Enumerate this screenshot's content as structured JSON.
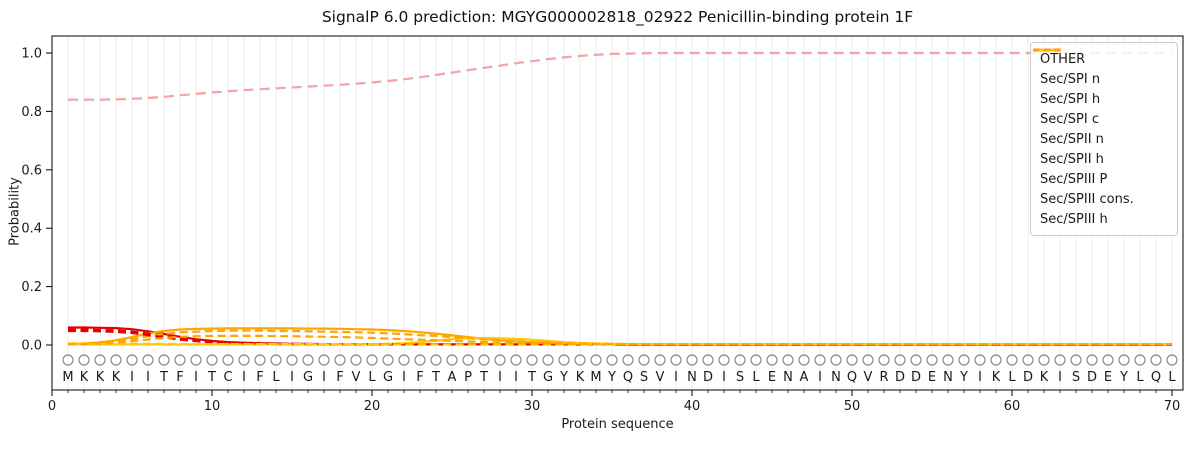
{
  "chart_data": {
    "type": "line",
    "title": "SignalP 6.0 prediction: MGYG000002818_02922 Penicillin-binding protein 1F",
    "xlabel": "Protein sequence",
    "ylabel": "Probability",
    "xlim": [
      0,
      70.7
    ],
    "ylim": [
      -0.155,
      1.06
    ],
    "x_ticks": [
      0,
      10,
      20,
      30,
      40,
      50,
      60,
      70
    ],
    "y_ticks": [
      0.0,
      0.2,
      0.4,
      0.6,
      0.8,
      1.0
    ],
    "grid": "light vertical gridline at every residue position 1-70",
    "legend_position": "upper right",
    "x": {
      "from": 1,
      "to": 70,
      "step": 1
    },
    "sequence": "MKKKIITFITCIFLIGIFVLGIFTAPTIITGYKMYQSVINDISLENAINQVRDDENYIKLDKISDEYLQL",
    "residue_marker": "open gray circle above each sequence letter",
    "series": [
      {
        "name": "OTHER",
        "color": "#f5a3a3",
        "dash": "dashed",
        "values": [
          0.84,
          0.84,
          0.84,
          0.841,
          0.843,
          0.846,
          0.85,
          0.855,
          0.86,
          0.865,
          0.869,
          0.873,
          0.876,
          0.879,
          0.882,
          0.885,
          0.888,
          0.891,
          0.895,
          0.899,
          0.904,
          0.91,
          0.917,
          0.925,
          0.933,
          0.941,
          0.949,
          0.957,
          0.965,
          0.972,
          0.979,
          0.985,
          0.99,
          0.994,
          0.997,
          0.998,
          0.999,
          1.0,
          1.0,
          1.0,
          1.0,
          1.0,
          1.0,
          1.0,
          1.0,
          1.0,
          1.0,
          1.0,
          1.0,
          1.0,
          1.0,
          1.0,
          1.0,
          1.0,
          1.0,
          1.0,
          1.0,
          1.0,
          1.0,
          1.0,
          1.0,
          1.0,
          1.0,
          1.0,
          1.0,
          1.0,
          1.0,
          1.0,
          1.0,
          1.0
        ]
      },
      {
        "name": "Sec/SPI n",
        "color": "#e60000",
        "dash": "solid",
        "values": [
          0.06,
          0.06,
          0.059,
          0.058,
          0.054,
          0.047,
          0.038,
          0.028,
          0.02,
          0.014,
          0.01,
          0.008,
          0.006,
          0.005,
          0.004,
          0.004,
          0.003,
          0.003,
          0.003,
          0.002,
          0.002,
          0.002,
          0.002,
          0.002,
          0.002,
          0.002,
          0.002,
          0.002,
          0.002,
          0.002,
          0.002,
          0.002,
          0.002,
          0.002,
          0.002,
          0.001,
          0.001,
          0.001,
          0.001,
          0.001,
          0.001,
          0.001,
          0.001,
          0.001,
          0.001,
          0.001,
          0.001,
          0.001,
          0.001,
          0.001,
          0.001,
          0.001,
          0.001,
          0.001,
          0.001,
          0.001,
          0.001,
          0.001,
          0.001,
          0.001,
          0.001,
          0.001,
          0.001,
          0.001,
          0.001,
          0.001,
          0.001,
          0.001,
          0.001,
          0.001
        ]
      },
      {
        "name": "Sec/SPI h",
        "color": "#ffa500",
        "dash": "solid",
        "values": [
          0.003,
          0.005,
          0.009,
          0.016,
          0.027,
          0.039,
          0.048,
          0.053,
          0.055,
          0.056,
          0.057,
          0.057,
          0.057,
          0.057,
          0.057,
          0.056,
          0.056,
          0.055,
          0.054,
          0.053,
          0.051,
          0.048,
          0.044,
          0.039,
          0.033,
          0.027,
          0.021,
          0.016,
          0.012,
          0.009,
          0.007,
          0.005,
          0.004,
          0.003,
          0.003,
          0.002,
          0.002,
          0.002,
          0.002,
          0.002,
          0.002,
          0.002,
          0.002,
          0.002,
          0.002,
          0.002,
          0.002,
          0.002,
          0.002,
          0.002,
          0.002,
          0.002,
          0.002,
          0.002,
          0.002,
          0.002,
          0.002,
          0.002,
          0.002,
          0.002,
          0.002,
          0.002,
          0.002,
          0.002,
          0.002,
          0.002,
          0.002,
          0.002,
          0.002,
          0.002
        ]
      },
      {
        "name": "Sec/SPI c",
        "color": "#ffc800",
        "dash": "solid",
        "values": [
          0.002,
          0.002,
          0.002,
          0.002,
          0.002,
          0.002,
          0.002,
          0.002,
          0.002,
          0.002,
          0.002,
          0.002,
          0.002,
          0.002,
          0.002,
          0.002,
          0.002,
          0.002,
          0.002,
          0.002,
          0.004,
          0.006,
          0.01,
          0.015,
          0.02,
          0.023,
          0.024,
          0.023,
          0.021,
          0.018,
          0.014,
          0.01,
          0.007,
          0.005,
          0.004,
          0.003,
          0.002,
          0.002,
          0.002,
          0.002,
          0.002,
          0.002,
          0.002,
          0.002,
          0.002,
          0.002,
          0.002,
          0.002,
          0.002,
          0.002,
          0.002,
          0.002,
          0.002,
          0.002,
          0.002,
          0.002,
          0.002,
          0.002,
          0.002,
          0.002,
          0.002,
          0.002,
          0.002,
          0.002,
          0.002,
          0.002,
          0.002,
          0.002,
          0.002,
          0.002
        ]
      },
      {
        "name": "Sec/SPII n",
        "color": "#e60000",
        "dash": "dashed",
        "values": [
          0.053,
          0.053,
          0.052,
          0.05,
          0.046,
          0.039,
          0.03,
          0.022,
          0.015,
          0.011,
          0.008,
          0.006,
          0.005,
          0.004,
          0.004,
          0.003,
          0.003,
          0.003,
          0.002,
          0.002,
          0.002,
          0.002,
          0.002,
          0.002,
          0.002,
          0.002,
          0.002,
          0.002,
          0.002,
          0.002,
          0.002,
          0.002,
          0.002,
          0.002,
          0.002,
          0.001,
          0.001,
          0.001,
          0.001,
          0.001,
          0.001,
          0.001,
          0.001,
          0.001,
          0.001,
          0.001,
          0.001,
          0.001,
          0.001,
          0.001,
          0.001,
          0.001,
          0.001,
          0.001,
          0.001,
          0.001,
          0.001,
          0.001,
          0.001,
          0.001,
          0.001,
          0.001,
          0.001,
          0.001,
          0.001,
          0.001,
          0.001,
          0.001,
          0.001,
          0.001
        ]
      },
      {
        "name": "Sec/SPII h",
        "color": "#ffa500",
        "dash": "dashed",
        "values": [
          0.003,
          0.004,
          0.007,
          0.012,
          0.02,
          0.03,
          0.038,
          0.043,
          0.046,
          0.048,
          0.049,
          0.049,
          0.049,
          0.048,
          0.048,
          0.047,
          0.046,
          0.045,
          0.044,
          0.042,
          0.04,
          0.037,
          0.034,
          0.031,
          0.027,
          0.023,
          0.019,
          0.016,
          0.013,
          0.01,
          0.008,
          0.006,
          0.005,
          0.004,
          0.004,
          0.003,
          0.003,
          0.003,
          0.003,
          0.003,
          0.003,
          0.003,
          0.003,
          0.003,
          0.003,
          0.003,
          0.003,
          0.003,
          0.003,
          0.003,
          0.003,
          0.003,
          0.003,
          0.003,
          0.003,
          0.003,
          0.003,
          0.003,
          0.003,
          0.003,
          0.003,
          0.003,
          0.003,
          0.003,
          0.003,
          0.003,
          0.003,
          0.003,
          0.003,
          0.003
        ]
      },
      {
        "name": "Sec/SPIII P",
        "color": "#e60000",
        "dash": "dashed",
        "values": [
          0.048,
          0.048,
          0.047,
          0.045,
          0.041,
          0.034,
          0.026,
          0.018,
          0.013,
          0.009,
          0.007,
          0.005,
          0.004,
          0.004,
          0.003,
          0.003,
          0.002,
          0.002,
          0.002,
          0.002,
          0.002,
          0.002,
          0.002,
          0.002,
          0.002,
          0.002,
          0.002,
          0.002,
          0.002,
          0.002,
          0.002,
          0.002,
          0.002,
          0.002,
          0.002,
          0.001,
          0.001,
          0.001,
          0.001,
          0.001,
          0.001,
          0.001,
          0.001,
          0.001,
          0.001,
          0.001,
          0.001,
          0.001,
          0.001,
          0.001,
          0.001,
          0.001,
          0.001,
          0.001,
          0.001,
          0.001,
          0.001,
          0.001,
          0.001,
          0.001,
          0.001,
          0.001,
          0.001,
          0.001,
          0.001,
          0.001,
          0.001,
          0.001,
          0.001,
          0.001
        ]
      },
      {
        "name": "Sec/SPIII cons.",
        "color": "#ffc800",
        "dash": "dashed",
        "values": [
          0.005,
          0.005,
          0.005,
          0.005,
          0.004,
          0.004,
          0.004,
          0.003,
          0.003,
          0.003,
          0.003,
          0.003,
          0.003,
          0.003,
          0.003,
          0.003,
          0.003,
          0.003,
          0.003,
          0.003,
          0.002,
          0.002,
          0.002,
          0.002,
          0.002,
          0.002,
          0.002,
          0.002,
          0.002,
          0.002,
          0.002,
          0.002,
          0.002,
          0.002,
          0.002,
          0.002,
          0.002,
          0.002,
          0.002,
          0.002,
          0.002,
          0.002,
          0.002,
          0.002,
          0.002,
          0.002,
          0.002,
          0.002,
          0.002,
          0.002,
          0.002,
          0.002,
          0.002,
          0.002,
          0.002,
          0.002,
          0.002,
          0.002,
          0.002,
          0.002,
          0.002,
          0.002,
          0.002,
          0.002,
          0.002,
          0.002,
          0.002,
          0.002,
          0.002,
          0.002
        ]
      },
      {
        "name": "Sec/SPIII h",
        "color": "#ffa500",
        "dash": "dashed",
        "values": [
          0.002,
          0.003,
          0.005,
          0.008,
          0.013,
          0.019,
          0.024,
          0.028,
          0.03,
          0.031,
          0.031,
          0.031,
          0.031,
          0.03,
          0.03,
          0.029,
          0.028,
          0.027,
          0.026,
          0.024,
          0.022,
          0.02,
          0.018,
          0.016,
          0.014,
          0.012,
          0.01,
          0.008,
          0.007,
          0.006,
          0.005,
          0.004,
          0.004,
          0.003,
          0.003,
          0.003,
          0.002,
          0.002,
          0.002,
          0.002,
          0.002,
          0.002,
          0.002,
          0.002,
          0.002,
          0.002,
          0.002,
          0.002,
          0.002,
          0.002,
          0.002,
          0.002,
          0.002,
          0.002,
          0.002,
          0.002,
          0.002,
          0.002,
          0.002,
          0.002,
          0.002,
          0.002,
          0.002,
          0.002,
          0.002,
          0.002,
          0.002,
          0.002,
          0.002,
          0.002
        ]
      }
    ],
    "colors": {
      "red": "#e60000",
      "orange": "#ffa500",
      "gold": "#ffc800",
      "other_pink": "#f5a3a3",
      "grid": "#ececec",
      "spine": "#000000",
      "circle_marker": "#8c8c8c",
      "text": "#1a1a1a"
    }
  }
}
